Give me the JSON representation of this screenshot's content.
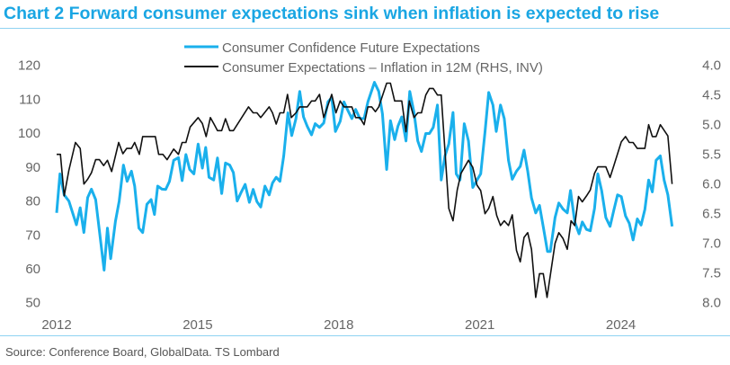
{
  "title": "Chart 2 Forward consumer expectations sink when inflation is expected to rise",
  "source": "Source: Conference Board, GlobalData. TS Lombard",
  "chart_data": {
    "type": "line",
    "title": "Chart 2 Forward consumer expectations sink when inflation is expected to rise",
    "xlabel": "",
    "ylabel": "",
    "y2label": "",
    "xlim": [
      2012,
      2025.2
    ],
    "ylim": [
      50,
      120
    ],
    "y2lim": [
      4.0,
      8.0
    ],
    "y2_inverted": true,
    "x_ticks": [
      "2012",
      "2015",
      "2018",
      "2021",
      "2024"
    ],
    "x_tick_values": [
      2012,
      2015,
      2018,
      2021,
      2024
    ],
    "y_ticks": [
      "120",
      "110",
      "100",
      "90",
      "80",
      "70",
      "60",
      "50"
    ],
    "y_tick_values": [
      120,
      110,
      100,
      90,
      80,
      70,
      60,
      50
    ],
    "y2_ticks": [
      "4.0",
      "4.5",
      "5.0",
      "5.5",
      "6.0",
      "6.5",
      "7.0",
      "7.5",
      "8.0"
    ],
    "y2_tick_values": [
      4.0,
      4.5,
      5.0,
      5.5,
      6.0,
      6.5,
      7.0,
      7.5,
      8.0
    ],
    "grid": false,
    "legend_position": "top-center",
    "series": [
      {
        "name": "Consumer Confidence Future Expectations",
        "axis": "left",
        "color": "#1ab0ec",
        "points": [
          [
            2012.0,
            76.5
          ],
          [
            2012.07,
            88
          ],
          [
            2012.16,
            81.8
          ],
          [
            2012.26,
            80
          ],
          [
            2012.42,
            73
          ],
          [
            2012.5,
            78
          ],
          [
            2012.58,
            70.7
          ],
          [
            2012.66,
            81
          ],
          [
            2012.74,
            83.5
          ],
          [
            2012.83,
            80.4
          ],
          [
            2013.01,
            59.6
          ],
          [
            2013.08,
            72
          ],
          [
            2013.15,
            63
          ],
          [
            2013.25,
            74
          ],
          [
            2013.33,
            80
          ],
          [
            2013.42,
            90.6
          ],
          [
            2013.5,
            85.8
          ],
          [
            2013.59,
            88.8
          ],
          [
            2013.66,
            84.4
          ],
          [
            2013.75,
            72
          ],
          [
            2013.83,
            70.7
          ],
          [
            2013.92,
            79
          ],
          [
            2014.01,
            80.4
          ],
          [
            2014.08,
            76
          ],
          [
            2014.15,
            84.4
          ],
          [
            2014.24,
            83.5
          ],
          [
            2014.32,
            83.4
          ],
          [
            2014.4,
            85.8
          ],
          [
            2014.49,
            92
          ],
          [
            2014.59,
            92.8
          ],
          [
            2014.67,
            86
          ],
          [
            2014.75,
            93.7
          ],
          [
            2014.83,
            89.3
          ],
          [
            2014.92,
            88
          ],
          [
            2015.01,
            96.8
          ],
          [
            2015.1,
            89.7
          ],
          [
            2015.17,
            95.8
          ],
          [
            2015.24,
            87
          ],
          [
            2015.34,
            86.2
          ],
          [
            2015.42,
            92.7
          ],
          [
            2015.51,
            82.2
          ],
          [
            2015.59,
            91.2
          ],
          [
            2015.68,
            90.6
          ],
          [
            2015.76,
            88.4
          ],
          [
            2015.84,
            80
          ],
          [
            2015.93,
            82.7
          ],
          [
            2016.01,
            84.9
          ],
          [
            2016.1,
            79.6
          ],
          [
            2016.18,
            83.4
          ],
          [
            2016.26,
            79.8
          ],
          [
            2016.34,
            78.2
          ],
          [
            2016.43,
            84.4
          ],
          [
            2016.52,
            81.8
          ],
          [
            2016.59,
            85.3
          ],
          [
            2016.67,
            87
          ],
          [
            2016.75,
            85.8
          ],
          [
            2016.83,
            93.3
          ],
          [
            2016.92,
            106
          ],
          [
            2017.0,
            99.3
          ],
          [
            2017.09,
            104.3
          ],
          [
            2017.17,
            112.3
          ],
          [
            2017.25,
            104.8
          ],
          [
            2017.33,
            102
          ],
          [
            2017.42,
            99.5
          ],
          [
            2017.5,
            102.8
          ],
          [
            2017.59,
            101.7
          ],
          [
            2017.68,
            103
          ],
          [
            2017.77,
            109.2
          ],
          [
            2017.85,
            110.5
          ],
          [
            2017.93,
            100.5
          ],
          [
            2018.03,
            103.5
          ],
          [
            2018.11,
            109.2
          ],
          [
            2018.2,
            106.5
          ],
          [
            2018.28,
            104.3
          ],
          [
            2018.36,
            107
          ],
          [
            2018.45,
            104.3
          ],
          [
            2018.54,
            104.3
          ],
          [
            2018.62,
            109.2
          ],
          [
            2018.76,
            115
          ],
          [
            2018.85,
            112.3
          ],
          [
            2018.93,
            105.7
          ],
          [
            2019.02,
            89.3
          ],
          [
            2019.1,
            103.7
          ],
          [
            2019.19,
            98.1
          ],
          [
            2019.26,
            102.1
          ],
          [
            2019.34,
            104.8
          ],
          [
            2019.43,
            97.7
          ],
          [
            2019.51,
            112.3
          ],
          [
            2019.6,
            106.1
          ],
          [
            2019.68,
            97.7
          ],
          [
            2019.76,
            94.6
          ],
          [
            2019.85,
            99.9
          ],
          [
            2019.93,
            99.9
          ],
          [
            2020.01,
            101.7
          ],
          [
            2020.1,
            108.3
          ],
          [
            2020.18,
            86.2
          ],
          [
            2020.26,
            93.3
          ],
          [
            2020.34,
            96.8
          ],
          [
            2020.43,
            106.1
          ],
          [
            2020.5,
            88
          ],
          [
            2020.58,
            86.2
          ],
          [
            2020.67,
            102.8
          ],
          [
            2020.76,
            97.7
          ],
          [
            2020.85,
            84
          ],
          [
            2020.94,
            86.2
          ],
          [
            2021.02,
            88
          ],
          [
            2021.11,
            100.4
          ],
          [
            2021.19,
            112
          ],
          [
            2021.28,
            108.3
          ],
          [
            2021.35,
            100.5
          ],
          [
            2021.44,
            108.3
          ],
          [
            2021.52,
            104.3
          ],
          [
            2021.61,
            92
          ],
          [
            2021.69,
            86.4
          ],
          [
            2021.78,
            88.8
          ],
          [
            2021.86,
            90.2
          ],
          [
            2021.94,
            95
          ],
          [
            2022.02,
            88.8
          ],
          [
            2022.1,
            80.9
          ],
          [
            2022.19,
            76.5
          ],
          [
            2022.27,
            78.7
          ],
          [
            2022.36,
            71.6
          ],
          [
            2022.44,
            65.1
          ],
          [
            2022.5,
            65.1
          ],
          [
            2022.6,
            75.1
          ],
          [
            2022.68,
            79.4
          ],
          [
            2022.77,
            77.6
          ],
          [
            2022.86,
            76.5
          ],
          [
            2022.93,
            83.1
          ],
          [
            2023.02,
            73.8
          ],
          [
            2023.11,
            70.3
          ],
          [
            2023.18,
            73.8
          ],
          [
            2023.27,
            71.6
          ],
          [
            2023.35,
            71.2
          ],
          [
            2023.44,
            77.8
          ],
          [
            2023.51,
            88
          ],
          [
            2023.59,
            83.1
          ],
          [
            2023.68,
            75.1
          ],
          [
            2023.77,
            72.5
          ],
          [
            2023.85,
            77.3
          ],
          [
            2023.93,
            81.8
          ],
          [
            2024.01,
            81.3
          ],
          [
            2024.1,
            75.6
          ],
          [
            2024.18,
            73.4
          ],
          [
            2024.26,
            68.5
          ],
          [
            2024.35,
            74.7
          ],
          [
            2024.43,
            72.9
          ],
          [
            2024.51,
            77.5
          ],
          [
            2024.59,
            86.2
          ],
          [
            2024.67,
            82.7
          ],
          [
            2024.75,
            92
          ],
          [
            2024.84,
            93.3
          ],
          [
            2024.92,
            86.2
          ],
          [
            2025.0,
            81.8
          ],
          [
            2025.09,
            72.5
          ]
        ]
      },
      {
        "name": "Consumer Expectations – Inflation in 12M (RHS, INV)",
        "axis": "right",
        "color": "#111111",
        "points": [
          [
            2012.0,
            5.5
          ],
          [
            2012.08,
            5.5
          ],
          [
            2012.16,
            6.2
          ],
          [
            2012.26,
            5.77
          ],
          [
            2012.4,
            5.3
          ],
          [
            2012.5,
            5.4
          ],
          [
            2012.58,
            6.0
          ],
          [
            2012.66,
            5.92
          ],
          [
            2012.74,
            5.81
          ],
          [
            2012.83,
            5.59
          ],
          [
            2012.91,
            5.59
          ],
          [
            2013.0,
            5.69
          ],
          [
            2013.08,
            5.6
          ],
          [
            2013.17,
            5.79
          ],
          [
            2013.32,
            5.3
          ],
          [
            2013.41,
            5.49
          ],
          [
            2013.49,
            5.4
          ],
          [
            2013.59,
            5.4
          ],
          [
            2013.66,
            5.3
          ],
          [
            2013.76,
            5.5
          ],
          [
            2013.83,
            5.2
          ],
          [
            2014.1,
            5.2
          ],
          [
            2014.17,
            5.5
          ],
          [
            2014.26,
            5.5
          ],
          [
            2014.35,
            5.59
          ],
          [
            2014.49,
            5.41
          ],
          [
            2014.59,
            5.5
          ],
          [
            2014.67,
            5.3
          ],
          [
            2014.75,
            5.3
          ],
          [
            2014.84,
            5.04
          ],
          [
            2015.01,
            4.88
          ],
          [
            2015.1,
            4.98
          ],
          [
            2015.18,
            5.2
          ],
          [
            2015.27,
            4.88
          ],
          [
            2015.34,
            4.98
          ],
          [
            2015.42,
            5.1
          ],
          [
            2015.51,
            5.1
          ],
          [
            2015.59,
            4.9
          ],
          [
            2015.68,
            5.1
          ],
          [
            2015.76,
            5.1
          ],
          [
            2016.08,
            4.7
          ],
          [
            2016.18,
            4.8
          ],
          [
            2016.26,
            4.8
          ],
          [
            2016.34,
            4.88
          ],
          [
            2016.52,
            4.7
          ],
          [
            2016.59,
            4.8
          ],
          [
            2016.67,
            4.99
          ],
          [
            2016.75,
            4.8
          ],
          [
            2016.83,
            4.8
          ],
          [
            2016.91,
            4.49
          ],
          [
            2016.99,
            4.88
          ],
          [
            2017.09,
            4.8
          ],
          [
            2017.17,
            4.7
          ],
          [
            2017.33,
            4.7
          ],
          [
            2017.42,
            4.6
          ],
          [
            2017.5,
            4.6
          ],
          [
            2017.59,
            4.49
          ],
          [
            2017.68,
            4.88
          ],
          [
            2017.76,
            4.7
          ],
          [
            2017.85,
            4.49
          ],
          [
            2017.94,
            4.8
          ],
          [
            2018.03,
            4.6
          ],
          [
            2018.11,
            4.7
          ],
          [
            2018.28,
            4.7
          ],
          [
            2018.36,
            4.88
          ],
          [
            2018.45,
            4.88
          ],
          [
            2018.54,
            5.0
          ],
          [
            2018.62,
            4.7
          ],
          [
            2018.7,
            4.7
          ],
          [
            2018.78,
            4.78
          ],
          [
            2018.85,
            4.7
          ],
          [
            2019.02,
            4.3
          ],
          [
            2019.1,
            4.3
          ],
          [
            2019.19,
            4.6
          ],
          [
            2019.34,
            4.6
          ],
          [
            2019.43,
            5.12
          ],
          [
            2019.5,
            4.6
          ],
          [
            2019.6,
            4.88
          ],
          [
            2019.68,
            4.8
          ],
          [
            2019.76,
            4.8
          ],
          [
            2019.85,
            4.5
          ],
          [
            2019.93,
            4.39
          ],
          [
            2020.01,
            4.39
          ],
          [
            2020.1,
            4.5
          ],
          [
            2020.18,
            4.5
          ],
          [
            2020.34,
            6.41
          ],
          [
            2020.43,
            6.62
          ],
          [
            2020.52,
            6.1
          ],
          [
            2020.6,
            5.82
          ],
          [
            2020.76,
            5.6
          ],
          [
            2020.85,
            5.72
          ],
          [
            2020.94,
            6.02
          ],
          [
            2021.02,
            6.11
          ],
          [
            2021.11,
            6.5
          ],
          [
            2021.19,
            6.41
          ],
          [
            2021.28,
            6.21
          ],
          [
            2021.36,
            6.53
          ],
          [
            2021.44,
            6.7
          ],
          [
            2021.52,
            6.62
          ],
          [
            2021.61,
            6.7
          ],
          [
            2021.69,
            6.52
          ],
          [
            2021.78,
            7.12
          ],
          [
            2021.86,
            7.31
          ],
          [
            2021.94,
            6.9
          ],
          [
            2022.02,
            6.82
          ],
          [
            2022.1,
            7.1
          ],
          [
            2022.19,
            7.91
          ],
          [
            2022.27,
            7.51
          ],
          [
            2022.35,
            7.51
          ],
          [
            2022.43,
            7.91
          ],
          [
            2022.6,
            7.0
          ],
          [
            2022.68,
            6.82
          ],
          [
            2022.77,
            6.92
          ],
          [
            2022.86,
            7.1
          ],
          [
            2022.94,
            6.62
          ],
          [
            2023.02,
            6.7
          ],
          [
            2023.1,
            6.21
          ],
          [
            2023.18,
            6.3
          ],
          [
            2023.27,
            6.2
          ],
          [
            2023.35,
            6.1
          ],
          [
            2023.44,
            5.82
          ],
          [
            2023.51,
            5.71
          ],
          [
            2023.68,
            5.71
          ],
          [
            2023.77,
            5.89
          ],
          [
            2023.85,
            5.69
          ],
          [
            2024.01,
            5.29
          ],
          [
            2024.1,
            5.2
          ],
          [
            2024.18,
            5.3
          ],
          [
            2024.26,
            5.3
          ],
          [
            2024.35,
            5.4
          ],
          [
            2024.51,
            5.4
          ],
          [
            2024.59,
            5.0
          ],
          [
            2024.67,
            5.2
          ],
          [
            2024.75,
            5.2
          ],
          [
            2024.84,
            5.0
          ],
          [
            2025.0,
            5.19
          ],
          [
            2025.09,
            6.0
          ]
        ]
      }
    ]
  }
}
